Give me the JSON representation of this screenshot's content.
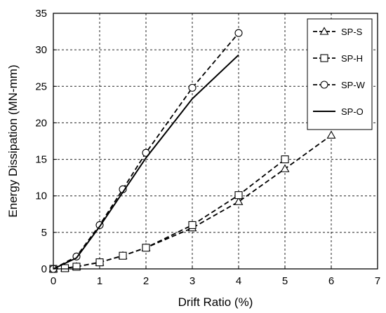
{
  "chart_data": {
    "type": "line",
    "title": "",
    "xlabel": "Drift Ratio (%)",
    "ylabel": "Energy Dissipation (MN-mm)",
    "xlim": [
      0,
      7
    ],
    "ylim": [
      0,
      35
    ],
    "xticks": [
      "0",
      "1",
      "2",
      "3",
      "4",
      "5",
      "6",
      "7"
    ],
    "yticks": [
      "0",
      "5",
      "10",
      "15",
      "20",
      "25",
      "30",
      "35"
    ],
    "grid": true,
    "legend_position": "top-right",
    "series": [
      {
        "name": "SP-S",
        "marker": "triangle",
        "line": "dashed",
        "x": [
          0,
          0.25,
          0.5,
          1,
          1.5,
          2,
          3,
          4,
          5,
          6
        ],
        "y": [
          0,
          0.1,
          0.3,
          0.9,
          1.8,
          2.9,
          5.6,
          9.2,
          13.7,
          18.3
        ]
      },
      {
        "name": "SP-H",
        "marker": "square",
        "line": "dashed",
        "x": [
          0,
          0.25,
          0.5,
          1,
          1.5,
          2,
          3,
          4,
          5
        ],
        "y": [
          0,
          0.1,
          0.3,
          0.9,
          1.8,
          2.9,
          6.0,
          10.1,
          15.0
        ]
      },
      {
        "name": "SP-W",
        "marker": "circle",
        "line": "dashed",
        "x": [
          0,
          0.5,
          1,
          1.5,
          2,
          3,
          4
        ],
        "y": [
          0,
          1.7,
          6.0,
          10.9,
          15.9,
          24.8,
          32.3
        ]
      },
      {
        "name": "SP-O",
        "marker": "none",
        "line": "solid",
        "x": [
          0,
          0.5,
          1,
          1.5,
          2,
          3,
          4
        ],
        "y": [
          0,
          1.5,
          5.8,
          10.5,
          15.2,
          23.3,
          29.3
        ]
      }
    ]
  }
}
